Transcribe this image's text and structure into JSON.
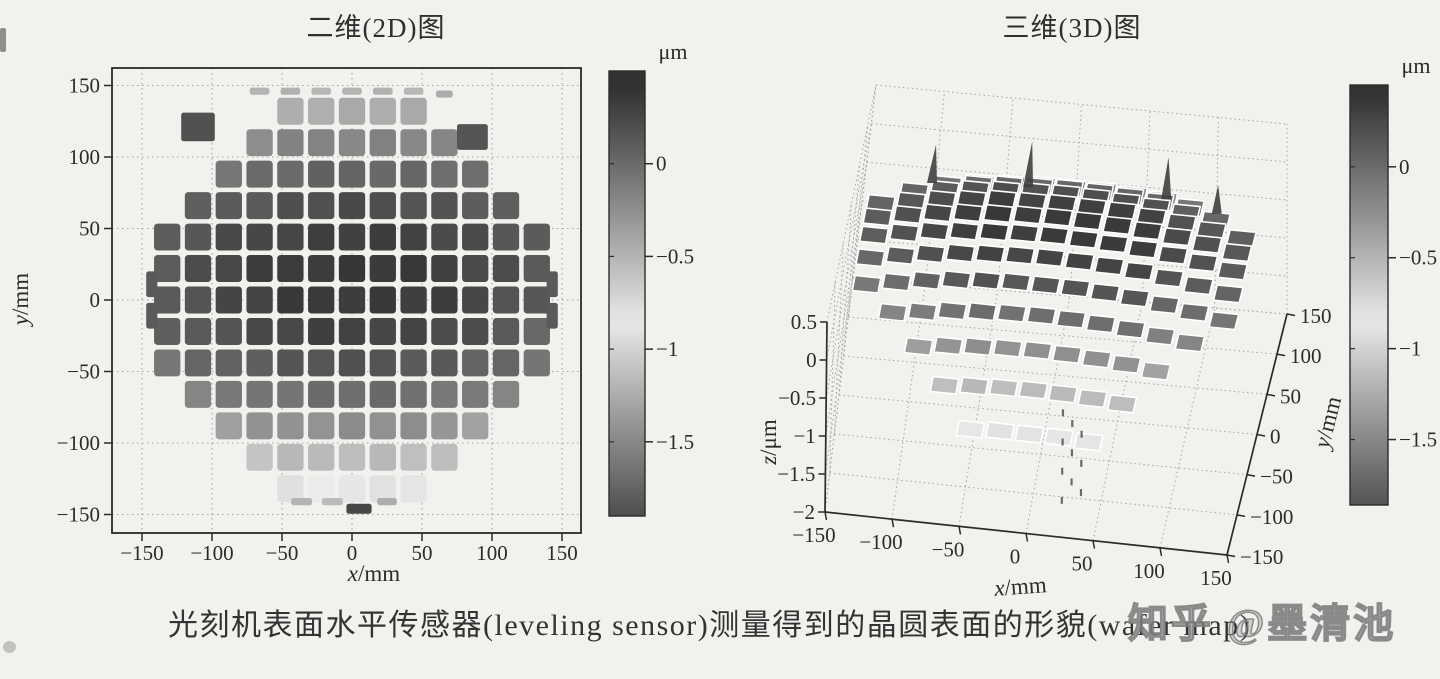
{
  "caption": "光刻机表面水平传感器(leveling sensor)测量得到的晶圆表面的形貌(wafer map)",
  "watermark": "知乎 @墨清池",
  "colors": {
    "page_background": "#f2f1ee",
    "ink": "#2b2b2b",
    "grid": "#a4a4a4",
    "colormap_style": "grayscale, lightest near -0.85 um, dark at both extremes"
  },
  "chart_data": [
    {
      "type": "heatmap",
      "title": "二维(2D)图",
      "xlabel": "x/mm",
      "ylabel": "y/mm",
      "xlim": [
        -169,
        164
      ],
      "ylim": [
        -163,
        162
      ],
      "xticks": [
        -150,
        -100,
        -50,
        0,
        50,
        100,
        150
      ],
      "yticks": [
        150,
        100,
        50,
        0,
        -50,
        -100,
        -150
      ],
      "grid": true,
      "z_unit": "μm",
      "colorbar": {
        "label": "μm",
        "ticks": [
          0,
          -0.5,
          -1,
          -1.5
        ],
        "vmax": 0.5,
        "vmin": -1.9
      },
      "wafer": {
        "radius_mm": 140,
        "die_pitch_mm": 22
      },
      "z_matrix": {
        "x_centers": [
          -132,
          -110,
          -88,
          -66,
          -44,
          -22,
          0,
          22,
          44,
          66,
          88,
          110,
          132
        ],
        "y_centers": [
          132,
          110,
          88,
          66,
          44,
          22,
          0,
          -22,
          -44,
          -66,
          -88,
          -110,
          -132
        ],
        "values": [
          [
            null,
            null,
            null,
            null,
            -0.46,
            -0.44,
            -0.44,
            -0.44,
            -0.46,
            null,
            null,
            null,
            null
          ],
          [
            null,
            null,
            null,
            -0.22,
            -0.19,
            -0.17,
            -0.17,
            -0.17,
            -0.19,
            -0.22,
            null,
            null,
            null
          ],
          [
            null,
            null,
            -0.05,
            -0.01,
            0.02,
            0.04,
            0.05,
            0.04,
            0.02,
            -0.01,
            -0.05,
            null,
            null
          ],
          [
            null,
            0.05,
            0.11,
            0.15,
            0.18,
            0.2,
            0.21,
            0.2,
            0.18,
            0.15,
            0.11,
            0.05,
            null
          ],
          [
            0.08,
            0.15,
            0.21,
            0.25,
            0.29,
            0.3,
            0.31,
            0.3,
            0.29,
            0.25,
            0.21,
            0.15,
            0.08
          ],
          [
            0.13,
            0.2,
            0.26,
            0.3,
            0.33,
            0.35,
            0.36,
            0.35,
            0.33,
            0.3,
            0.26,
            0.2,
            0.13
          ],
          [
            0.12,
            0.19,
            0.25,
            0.29,
            0.32,
            0.34,
            0.35,
            0.34,
            0.32,
            0.29,
            0.25,
            0.19,
            0.12
          ],
          [
            0.05,
            0.12,
            0.18,
            0.23,
            0.26,
            0.28,
            0.29,
            0.28,
            0.26,
            0.23,
            0.18,
            0.12,
            0.05
          ],
          [
            -0.07,
            0.0,
            0.06,
            0.11,
            0.14,
            0.16,
            0.16,
            0.16,
            0.14,
            0.11,
            0.06,
            0.0,
            -0.07
          ],
          [
            null,
            -0.17,
            -0.12,
            -0.07,
            -0.04,
            -0.02,
            -0.01,
            -0.02,
            -0.04,
            -0.07,
            -0.12,
            -0.17,
            null
          ],
          [
            null,
            null,
            -0.35,
            -0.3,
            -0.27,
            -0.25,
            -0.24,
            -0.25,
            -0.27,
            -0.3,
            -0.35,
            null,
            null
          ],
          [
            null,
            null,
            null,
            -0.59,
            -0.56,
            -0.54,
            -0.53,
            -0.54,
            -0.56,
            -0.59,
            null,
            null,
            null
          ],
          [
            null,
            null,
            null,
            null,
            -0.9,
            -0.88,
            -0.88,
            -0.88,
            -0.9,
            null,
            null,
            null,
            null
          ]
        ]
      },
      "fragments": [
        {
          "x": -66,
          "y": 146,
          "w": 14,
          "h": 5,
          "v": -0.5
        },
        {
          "x": -44,
          "y": 146,
          "w": 14,
          "h": 5,
          "v": -0.48
        },
        {
          "x": -22,
          "y": 146,
          "w": 14,
          "h": 5,
          "v": -0.52
        },
        {
          "x": 0,
          "y": 146,
          "w": 14,
          "h": 5,
          "v": -0.5
        },
        {
          "x": 22,
          "y": 146,
          "w": 14,
          "h": 5,
          "v": -0.48
        },
        {
          "x": 44,
          "y": 146,
          "w": 14,
          "h": 5,
          "v": -0.52
        },
        {
          "x": 66,
          "y": 144,
          "w": 12,
          "h": 5,
          "v": -0.45
        },
        {
          "x": -110,
          "y": 121,
          "w": 24,
          "h": 20,
          "v": 0.18
        },
        {
          "x": 86,
          "y": 114,
          "w": 22,
          "h": 18,
          "v": 0.15
        },
        {
          "x": -143,
          "y": 11,
          "w": 8,
          "h": 18,
          "v": 0.12
        },
        {
          "x": -143,
          "y": -11,
          "w": 8,
          "h": 18,
          "v": 0.12
        },
        {
          "x": 143,
          "y": 11,
          "w": 8,
          "h": 18,
          "v": 0.12
        },
        {
          "x": 143,
          "y": -11,
          "w": 8,
          "h": 18,
          "v": 0.12
        },
        {
          "x": -36,
          "y": -141,
          "w": 15,
          "h": 5,
          "v": -0.5
        },
        {
          "x": -14,
          "y": -141,
          "w": 15,
          "h": 5,
          "v": -0.55
        },
        {
          "x": 5,
          "y": -146,
          "w": 18,
          "h": 7,
          "v": 0.25
        },
        {
          "x": 25,
          "y": -141,
          "w": 14,
          "h": 5,
          "v": -0.45
        }
      ]
    },
    {
      "type": "surface3d",
      "title": "三维(3D)图",
      "xlabel": "x/mm",
      "ylabel": "y/mm",
      "zlabel": "z/μm",
      "xticks": [
        -150,
        -100,
        -50,
        0,
        50,
        100,
        150
      ],
      "yticks": [
        150,
        100,
        50,
        0,
        -50,
        -100,
        -150
      ],
      "zticks": [
        0.5,
        0,
        -0.5,
        -1,
        -1.5,
        -2
      ],
      "xlim": [
        -150,
        150
      ],
      "ylim": [
        -150,
        150
      ],
      "zlim": [
        -2,
        0.5
      ],
      "grid": true,
      "z_unit": "μm",
      "colorbar": {
        "label": "μm",
        "ticks": [
          0,
          -0.5,
          -1,
          -1.5
        ],
        "vmax": 0.45,
        "vmin": -1.86
      },
      "surface_source": "same wafer z_matrix as 2D panel",
      "spikes": [
        {
          "x": -99,
          "y": 88,
          "z": -0.05,
          "h": 0.5
        },
        {
          "x": -33,
          "y": 132,
          "z": -0.45,
          "h": 0.6
        },
        {
          "x": 66,
          "y": 132,
          "z": -0.44,
          "h": 0.55
        },
        {
          "x": 108,
          "y": 88,
          "z": -0.1,
          "h": 0.38
        }
      ],
      "noise_trail": {
        "x": 28,
        "y": -100,
        "z_top": -0.85,
        "z_bottom": -2.0,
        "count": 10
      }
    }
  ]
}
